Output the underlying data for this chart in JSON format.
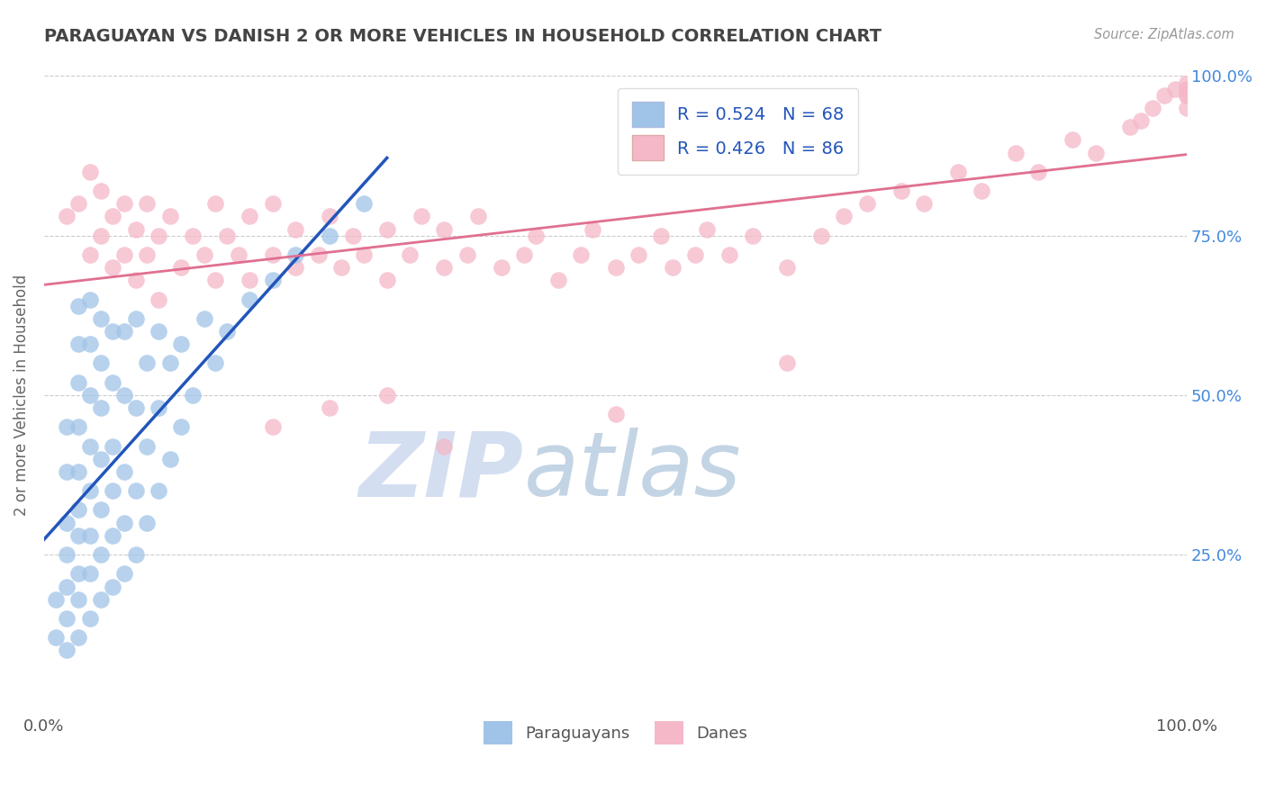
{
  "title": "PARAGUAYAN VS DANISH 2 OR MORE VEHICLES IN HOUSEHOLD CORRELATION CHART",
  "source": "Source: ZipAtlas.com",
  "ylabel": "2 or more Vehicles in Household",
  "xlim": [
    0,
    1.0
  ],
  "ylim": [
    0,
    1.0
  ],
  "ytick_vals": [
    0.25,
    0.5,
    0.75,
    1.0
  ],
  "ytick_labels": [
    "25.0%",
    "50.0%",
    "75.0%",
    "100.0%"
  ],
  "grid_color": "#cccccc",
  "background_color": "#ffffff",
  "paraguayan_color": "#a0c4e8",
  "danish_color": "#f5b8c8",
  "paraguayan_R": 0.524,
  "paraguayan_N": 68,
  "danish_R": 0.426,
  "danish_N": 86,
  "paraguayan_line_color": "#2255bb",
  "danish_line_color": "#e07090",
  "legend_R_color": "#2255bb",
  "right_tick_color": "#4488dd",
  "watermark_color": "#c8d8f0",
  "paraguayan_x": [
    0.01,
    0.01,
    0.02,
    0.02,
    0.02,
    0.02,
    0.02,
    0.02,
    0.02,
    0.03,
    0.03,
    0.03,
    0.03,
    0.03,
    0.03,
    0.03,
    0.03,
    0.03,
    0.03,
    0.04,
    0.04,
    0.04,
    0.04,
    0.04,
    0.04,
    0.04,
    0.04,
    0.05,
    0.05,
    0.05,
    0.05,
    0.05,
    0.05,
    0.05,
    0.06,
    0.06,
    0.06,
    0.06,
    0.06,
    0.06,
    0.07,
    0.07,
    0.07,
    0.07,
    0.07,
    0.08,
    0.08,
    0.08,
    0.08,
    0.09,
    0.09,
    0.09,
    0.1,
    0.1,
    0.1,
    0.11,
    0.11,
    0.12,
    0.12,
    0.13,
    0.14,
    0.15,
    0.16,
    0.18,
    0.2,
    0.22,
    0.25,
    0.28
  ],
  "paraguayan_y": [
    0.12,
    0.18,
    0.1,
    0.15,
    0.2,
    0.25,
    0.3,
    0.38,
    0.45,
    0.12,
    0.18,
    0.22,
    0.28,
    0.32,
    0.38,
    0.45,
    0.52,
    0.58,
    0.64,
    0.15,
    0.22,
    0.28,
    0.35,
    0.42,
    0.5,
    0.58,
    0.65,
    0.18,
    0.25,
    0.32,
    0.4,
    0.48,
    0.55,
    0.62,
    0.2,
    0.28,
    0.35,
    0.42,
    0.52,
    0.6,
    0.22,
    0.3,
    0.38,
    0.5,
    0.6,
    0.25,
    0.35,
    0.48,
    0.62,
    0.3,
    0.42,
    0.55,
    0.35,
    0.48,
    0.6,
    0.4,
    0.55,
    0.45,
    0.58,
    0.5,
    0.62,
    0.55,
    0.6,
    0.65,
    0.68,
    0.72,
    0.75,
    0.8
  ],
  "danish_x": [
    0.02,
    0.03,
    0.04,
    0.04,
    0.05,
    0.05,
    0.06,
    0.06,
    0.07,
    0.07,
    0.08,
    0.08,
    0.09,
    0.09,
    0.1,
    0.1,
    0.11,
    0.12,
    0.13,
    0.14,
    0.15,
    0.15,
    0.16,
    0.17,
    0.18,
    0.18,
    0.2,
    0.2,
    0.22,
    0.22,
    0.24,
    0.25,
    0.26,
    0.27,
    0.28,
    0.3,
    0.3,
    0.32,
    0.33,
    0.35,
    0.35,
    0.37,
    0.38,
    0.4,
    0.42,
    0.43,
    0.45,
    0.47,
    0.48,
    0.5,
    0.52,
    0.54,
    0.55,
    0.57,
    0.58,
    0.6,
    0.62,
    0.65,
    0.68,
    0.7,
    0.72,
    0.75,
    0.77,
    0.8,
    0.82,
    0.85,
    0.87,
    0.9,
    0.92,
    0.95,
    0.96,
    0.97,
    0.98,
    0.99,
    1.0,
    1.0,
    1.0,
    1.0,
    1.0,
    1.0,
    0.2,
    0.25,
    0.3,
    0.35,
    0.5,
    0.65
  ],
  "danish_y": [
    0.78,
    0.8,
    0.72,
    0.85,
    0.75,
    0.82,
    0.7,
    0.78,
    0.72,
    0.8,
    0.68,
    0.76,
    0.72,
    0.8,
    0.65,
    0.75,
    0.78,
    0.7,
    0.75,
    0.72,
    0.8,
    0.68,
    0.75,
    0.72,
    0.78,
    0.68,
    0.72,
    0.8,
    0.7,
    0.76,
    0.72,
    0.78,
    0.7,
    0.75,
    0.72,
    0.68,
    0.76,
    0.72,
    0.78,
    0.7,
    0.76,
    0.72,
    0.78,
    0.7,
    0.72,
    0.75,
    0.68,
    0.72,
    0.76,
    0.7,
    0.72,
    0.75,
    0.7,
    0.72,
    0.76,
    0.72,
    0.75,
    0.7,
    0.75,
    0.78,
    0.8,
    0.82,
    0.8,
    0.85,
    0.82,
    0.88,
    0.85,
    0.9,
    0.88,
    0.92,
    0.93,
    0.95,
    0.97,
    0.98,
    0.95,
    0.97,
    0.98,
    0.97,
    0.98,
    0.99,
    0.45,
    0.48,
    0.5,
    0.42,
    0.47,
    0.55
  ]
}
